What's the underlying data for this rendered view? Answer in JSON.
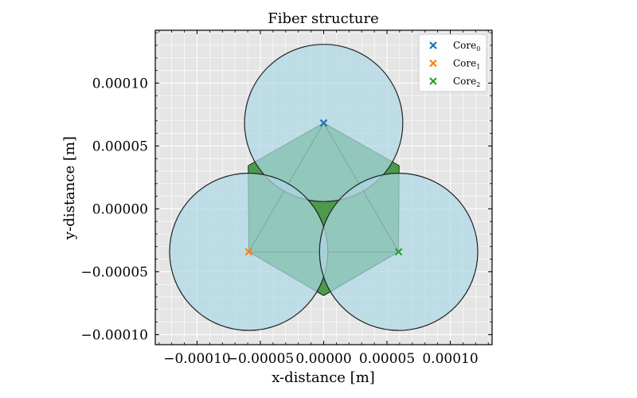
{
  "chart_data": {
    "type": "scatter",
    "title": "Fiber structure",
    "xlabel": "x-distance [m]",
    "ylabel": "y-distance [m]",
    "xlim": [
      -0.000133,
      0.000133
    ],
    "ylim": [
      -0.000108,
      0.000142
    ],
    "xticks": [
      -0.0001,
      -5e-05,
      0.0,
      5e-05,
      0.0001
    ],
    "xtick_labels": [
      "−0.00010",
      "−0.00005",
      "0.00000",
      "0.00005",
      "0.00010"
    ],
    "yticks": [
      -0.0001,
      -5e-05,
      0.0,
      5e-05,
      0.0001
    ],
    "ytick_labels": [
      "−0.00010",
      "−0.00005",
      "0.00000",
      "0.00005",
      "0.00010"
    ],
    "grid": true,
    "legend_position": "top-right",
    "core_radius": 6.25e-05,
    "series": [
      {
        "name": "Core",
        "sub": "0",
        "x": 0.0,
        "y": 6.83e-05,
        "color": "#1f77b4"
      },
      {
        "name": "Core",
        "sub": "1",
        "x": -5.92e-05,
        "y": -3.42e-05,
        "color": "#ff7f0e"
      },
      {
        "name": "Core",
        "sub": "2",
        "x": 5.92e-05,
        "y": -3.42e-05,
        "color": "#2ca02c"
      }
    ],
    "colors": {
      "core_fill": "#add8e6",
      "overlap_fill": "#b8b8c8",
      "interstitial_fill": "#4c9a4c",
      "axes_bg": "#e5e5e5",
      "grid": "#ffffff"
    }
  }
}
